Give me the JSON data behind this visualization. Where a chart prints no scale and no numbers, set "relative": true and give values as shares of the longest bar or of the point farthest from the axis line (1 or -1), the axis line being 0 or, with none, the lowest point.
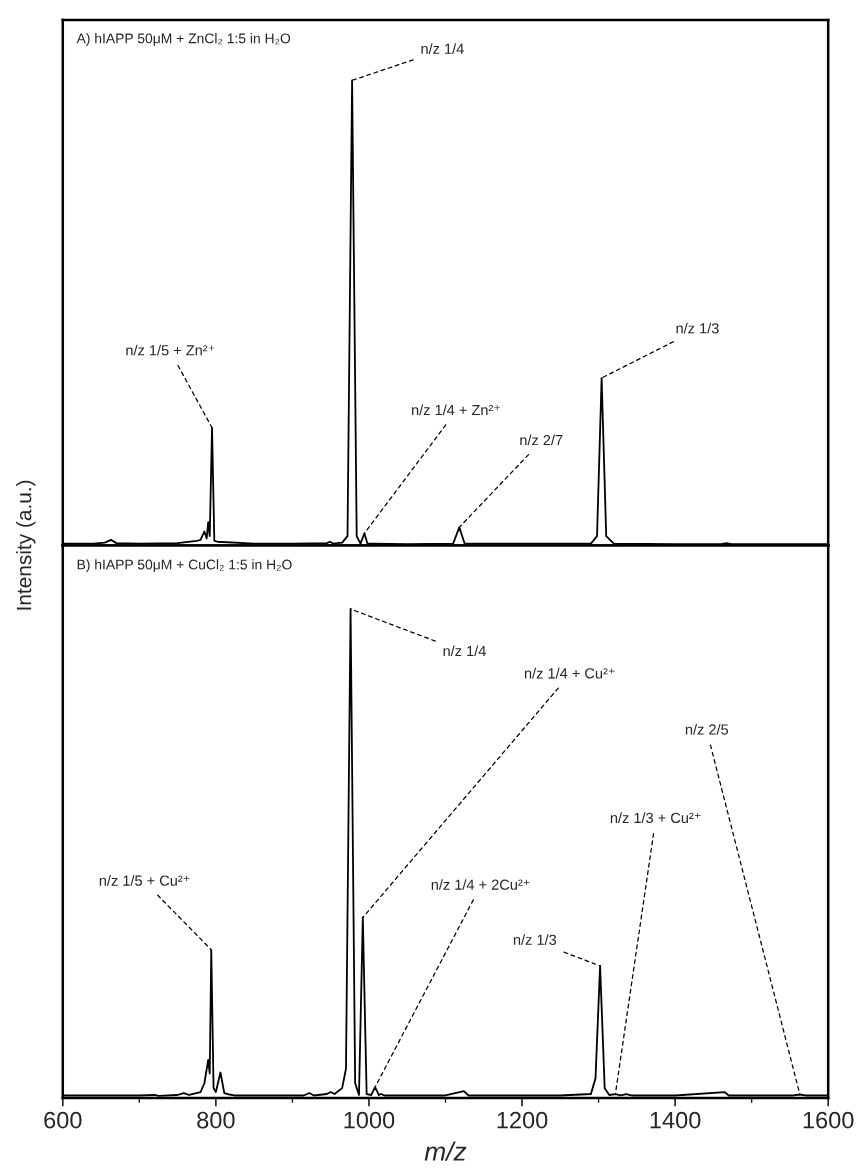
{
  "chart_data": [
    {
      "type": "line",
      "title": "A) hIAPP 50μM + ZnCl₂ 1:5 in H₂O",
      "ylabel": "Intensity (a.u.)",
      "relative": true,
      "tick_labels": false,
      "xlim": [
        600,
        1600
      ],
      "series": [
        {
          "color": "#000000",
          "x": [
            600,
            640,
            655,
            663,
            670,
            700,
            750,
            775,
            780,
            785,
            788,
            790,
            792,
            795,
            798,
            802,
            850,
            900,
            945,
            949,
            953,
            965,
            972,
            978,
            984,
            989,
            994,
            998,
            1005,
            1050,
            1110,
            1118,
            1125,
            1200,
            1290,
            1298,
            1304,
            1310,
            1320,
            1400,
            1460,
            1467,
            1474,
            1600
          ],
          "values": [
            0.004,
            0.004,
            0.006,
            0.012,
            0.005,
            0.004,
            0.005,
            0.01,
            0.012,
            0.03,
            0.015,
            0.05,
            0.02,
            0.253,
            0.01,
            0.008,
            0.004,
            0.004,
            0.005,
            0.008,
            0.004,
            0.006,
            0.02,
            1,
            0.02,
            0.004,
            0.026,
            0.004,
            0.004,
            0.003,
            0.004,
            0.039,
            0.004,
            0.004,
            0.004,
            0.02,
            0.36,
            0.02,
            0.004,
            0.003,
            0.003,
            0.005,
            0.003,
            0.003
          ]
        }
      ],
      "annotations": [
        {
          "text": "n/z 1/4",
          "x": 978,
          "y": 1
        },
        {
          "text": "n/z 1/5 + Zn²⁺",
          "x": 795,
          "y": 0.253
        },
        {
          "text": "n/z 1/4 + Zn²⁺",
          "x": 994,
          "y": 0.026
        },
        {
          "text": "n/z 2/7",
          "x": 1118,
          "y": 0.039
        },
        {
          "text": "n/z 1/3",
          "x": 1304,
          "y": 0.36
        }
      ]
    },
    {
      "type": "line",
      "title": "B) hIAPP 50μM + CuCl₂ 1:5 in H₂O",
      "xlabel": "m/z",
      "relative": true,
      "tick_labels": "x",
      "xlim": [
        600,
        1600
      ],
      "xticks": [
        600,
        {
          "value": 700,
          "label": null
        },
        800,
        {
          "value": 900,
          "label": null
        },
        1000,
        {
          "value": 1100,
          "label": null
        },
        1200,
        {
          "value": 1300,
          "label": null
        },
        1400,
        {
          "value": 1500,
          "label": null
        },
        1600
      ],
      "series": [
        {
          "color": "#000000",
          "x": [
            600,
            700,
            720,
            725,
            750,
            758,
            765,
            780,
            785,
            790,
            792,
            794,
            797,
            800,
            806,
            811,
            818,
            824,
            880,
            915,
            922,
            928,
            945,
            950,
            955,
            965,
            970,
            976,
            982,
            987,
            992,
            997,
            1003,
            1008,
            1013,
            1016,
            1020,
            1100,
            1124,
            1130,
            1250,
            1290,
            1296,
            1302,
            1308,
            1314,
            1322,
            1329,
            1336,
            1343,
            1400,
            1465,
            1470,
            1555,
            1563,
            1570,
            1600
          ],
          "values": [
            0.005,
            0.005,
            0.006,
            0.004,
            0.006,
            0.01,
            0.006,
            0.012,
            0.03,
            0.078,
            0.05,
            0.303,
            0.02,
            0.012,
            0.052,
            0.01,
            0.007,
            0.005,
            0.005,
            0.005,
            0.01,
            0.005,
            0.008,
            0.012,
            0.008,
            0.02,
            0.06,
            1,
            0.03,
            0.006,
            0.369,
            0.008,
            0.006,
            0.022,
            0.006,
            0.008,
            0.005,
            0.005,
            0.014,
            0.005,
            0.005,
            0.008,
            0.04,
            0.27,
            0.02,
            0.006,
            0.008,
            0.005,
            0.008,
            0.005,
            0.005,
            0.012,
            0.005,
            0.005,
            0.007,
            0.005,
            0.005
          ]
        }
      ],
      "annotations": [
        {
          "text": "n/z 1/4",
          "x": 976,
          "y": 1
        },
        {
          "text": "n/z 1/4 + Cu²⁺",
          "x": 992,
          "y": 0.369
        },
        {
          "text": "n/z 1/5 + Cu²⁺",
          "x": 794,
          "y": 0.303
        },
        {
          "text": "n/z 1/4 + 2Cu²⁺",
          "x": 1008,
          "y": 0.022
        },
        {
          "text": "n/z 1/3",
          "x": 1302,
          "y": 0.27
        },
        {
          "text": "n/z 1/3 + Cu²⁺",
          "x": 1322,
          "y": 0.008
        },
        {
          "text": "n/z 2/5",
          "x": 1563,
          "y": 0.007
        }
      ]
    }
  ]
}
